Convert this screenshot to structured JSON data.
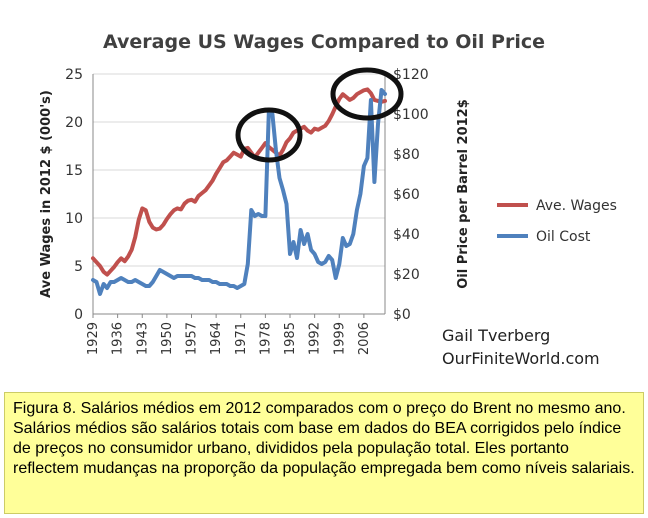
{
  "chart_data": {
    "type": "line",
    "title": "Average US Wages Compared to Oil Price",
    "ylabel": "Ave Wages in 2012 $ (000's)",
    "y2label": "Oil Price per Barrel 2012$",
    "ylim": [
      0,
      25
    ],
    "y2lim": [
      0,
      120
    ],
    "yticks": [
      "0",
      "5",
      "10",
      "15",
      "20",
      "25"
    ],
    "y2ticks": [
      "$0",
      "$20",
      "$40",
      "$60",
      "$80",
      "$100",
      "$120"
    ],
    "xticks": [
      "1929",
      "1936",
      "1943",
      "1950",
      "1957",
      "1964",
      "1971",
      "1978",
      "1985",
      "1992",
      "1999",
      "2006"
    ],
    "xlim": [
      1929,
      2012
    ],
    "grid": true,
    "legend_position": "right",
    "series": [
      {
        "name": "Ave. Wages",
        "axis": "left",
        "color": "#c0504d",
        "x": [
          1929,
          1930,
          1931,
          1932,
          1933,
          1934,
          1935,
          1936,
          1937,
          1938,
          1939,
          1940,
          1941,
          1942,
          1943,
          1944,
          1945,
          1946,
          1947,
          1948,
          1949,
          1950,
          1951,
          1952,
          1953,
          1954,
          1955,
          1956,
          1957,
          1958,
          1959,
          1960,
          1961,
          1962,
          1963,
          1964,
          1965,
          1966,
          1967,
          1968,
          1969,
          1970,
          1971,
          1972,
          1973,
          1974,
          1975,
          1976,
          1977,
          1978,
          1979,
          1980,
          1981,
          1982,
          1983,
          1984,
          1985,
          1986,
          1987,
          1988,
          1989,
          1990,
          1991,
          1992,
          1993,
          1994,
          1995,
          1996,
          1997,
          1998,
          1999,
          2000,
          2001,
          2002,
          2003,
          2004,
          2005,
          2006,
          2007,
          2008,
          2009,
          2010,
          2011,
          2012
        ],
        "values": [
          5.8,
          5.4,
          5.0,
          4.4,
          4.1,
          4.5,
          4.9,
          5.4,
          5.8,
          5.5,
          6.0,
          6.7,
          8.0,
          9.8,
          11.0,
          10.8,
          9.6,
          9.0,
          8.8,
          8.9,
          9.3,
          9.9,
          10.4,
          10.8,
          11.0,
          10.9,
          11.5,
          11.8,
          11.9,
          11.7,
          12.3,
          12.6,
          12.9,
          13.4,
          13.9,
          14.6,
          15.2,
          15.8,
          16.0,
          16.4,
          16.8,
          16.6,
          16.4,
          17.2,
          17.3,
          16.8,
          16.3,
          16.8,
          17.3,
          17.8,
          17.4,
          17.1,
          16.8,
          16.5,
          17.1,
          17.9,
          18.3,
          18.9,
          19.1,
          19.3,
          19.5,
          19.1,
          18.9,
          19.3,
          19.2,
          19.4,
          19.6,
          20.1,
          20.8,
          21.6,
          22.4,
          22.9,
          22.6,
          22.3,
          22.5,
          22.9,
          23.1,
          23.3,
          23.4,
          23.0,
          22.3,
          22.2,
          22.1,
          22.2
        ]
      },
      {
        "name": "Oil Cost",
        "axis": "right",
        "color": "#4f81bd",
        "x": [
          1929,
          1930,
          1931,
          1932,
          1933,
          1934,
          1935,
          1936,
          1937,
          1938,
          1939,
          1940,
          1941,
          1942,
          1943,
          1944,
          1945,
          1946,
          1947,
          1948,
          1949,
          1950,
          1951,
          1952,
          1953,
          1954,
          1955,
          1956,
          1957,
          1958,
          1959,
          1960,
          1961,
          1962,
          1963,
          1964,
          1965,
          1966,
          1967,
          1968,
          1969,
          1970,
          1971,
          1972,
          1973,
          1974,
          1975,
          1976,
          1977,
          1978,
          1979,
          1980,
          1981,
          1982,
          1983,
          1984,
          1985,
          1986,
          1987,
          1988,
          1989,
          1990,
          1991,
          1992,
          1993,
          1994,
          1995,
          1996,
          1997,
          1998,
          1999,
          2000,
          2001,
          2002,
          2003,
          2004,
          2005,
          2006,
          2007,
          2008,
          2009,
          2010,
          2011,
          2012
        ],
        "values": [
          17,
          16,
          10,
          15,
          13,
          16,
          16,
          17,
          18,
          17,
          16,
          16,
          17,
          16,
          15,
          14,
          14,
          16,
          19,
          22,
          21,
          20,
          19,
          18,
          19,
          19,
          19,
          19,
          19,
          18,
          18,
          17,
          17,
          17,
          16,
          16,
          15,
          15,
          15,
          14,
          14,
          13,
          14,
          15,
          25,
          52,
          49,
          50,
          49,
          49,
          102,
          100,
          82,
          68,
          62,
          55,
          30,
          36,
          28,
          42,
          35,
          40,
          32,
          30,
          26,
          25,
          26,
          29,
          27,
          18,
          25,
          38,
          34,
          35,
          40,
          52,
          60,
          74,
          78,
          107,
          66,
          95,
          112,
          110
        ]
      }
    ],
    "annotations": [
      "Gail Tverberg",
      "OurFiniteWorld.com"
    ]
  },
  "caption": "Figura 8.  Salários médios em 2012 comparados com o preço do Brent no mesmo ano.  Salários médios são salários totais com base em dados do BEA corrigidos pelo índice de preços no consumidor urbano, divididos pela população total.  Eles portanto reflectem mudanças na proporção da população empregada bem como níveis salariais."
}
